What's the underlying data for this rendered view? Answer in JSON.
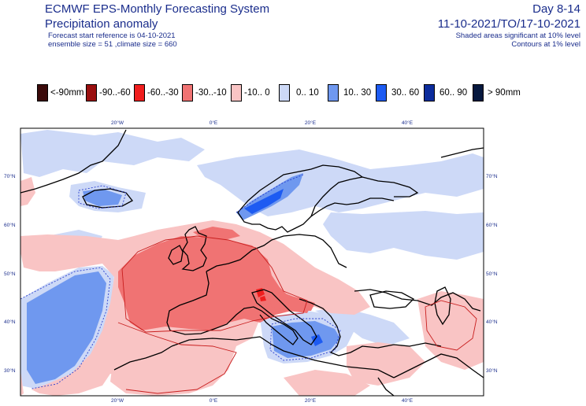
{
  "header": {
    "title": "ECMWF EPS-Monthly Forecasting System",
    "subtitle": "Precipitation anomaly",
    "forecast_ref": "Forecast start reference is 04-10-2021",
    "ensemble": "ensemble size = 51  ,climate size = 660",
    "day_range": "Day 8-14",
    "valid_dates": "11-10-2021/TO/17-10-2021",
    "shaded_note": "Shaded areas significant at 10% level",
    "contour_note": "Contours at 1% level"
  },
  "legend": [
    {
      "label": "<-90mm",
      "color": "#3b0a0a"
    },
    {
      "label": "-90..-60",
      "color": "#9a0f0f"
    },
    {
      "label": "-60..-30",
      "color": "#f01e1e"
    },
    {
      "label": "-30..-10",
      "color": "#f07373"
    },
    {
      "label": "-10..  0",
      "color": "#f9c4c4"
    },
    {
      "label": "0..  10",
      "color": "#cdd9f7"
    },
    {
      "label": "10..  30",
      "color": "#6f98ef"
    },
    {
      "label": "30..  60",
      "color": "#1d5bf2"
    },
    {
      "label": "60..  90",
      "color": "#0c2c9c"
    },
    {
      "label": ">  90mm",
      "color": "#06183e"
    }
  ],
  "axes": {
    "top": [
      "20°W",
      "0°E",
      "20°E",
      "40°E"
    ],
    "bottom": [
      "20°W",
      "0°E",
      "20°E",
      "40°E"
    ],
    "left": [
      "70°N",
      "60°N",
      "50°N",
      "40°N",
      "30°N"
    ],
    "right": [
      "70°N",
      "60°N",
      "50°N",
      "40°N",
      "30°N"
    ]
  }
}
